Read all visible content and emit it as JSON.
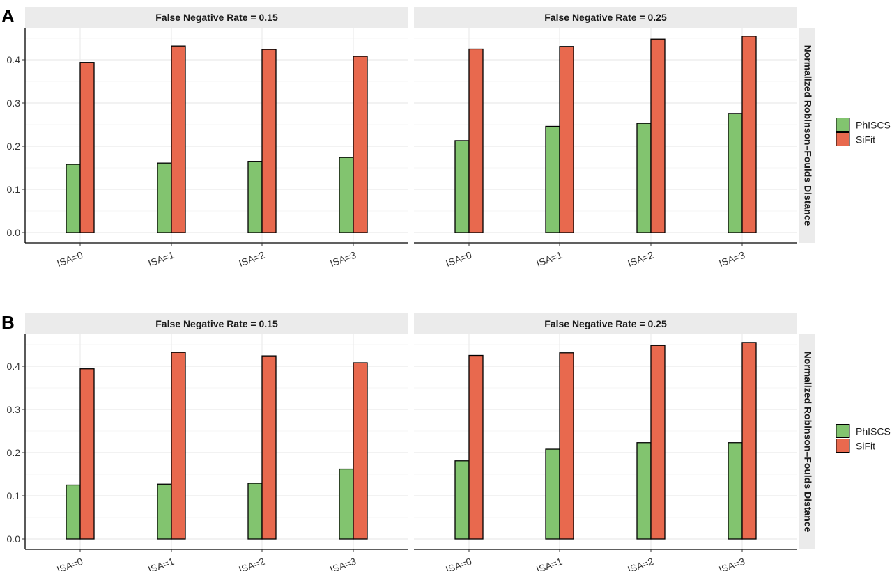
{
  "chart_data": [
    {
      "panel_label": "A",
      "type": "bar",
      "facets": [
        {
          "title": "False Negative Rate = 0.15",
          "categories": [
            "ISA=0",
            "ISA=1",
            "ISA=2",
            "ISA=3"
          ],
          "series": [
            {
              "name": "PhISCS",
              "values": [
                0.158,
                0.161,
                0.165,
                0.174
              ]
            },
            {
              "name": "SiFit",
              "values": [
                0.394,
                0.432,
                0.424,
                0.408
              ]
            }
          ]
        },
        {
          "title": "False Negative Rate = 0.25",
          "categories": [
            "ISA=0",
            "ISA=1",
            "ISA=2",
            "ISA=3"
          ],
          "series": [
            {
              "name": "PhISCS",
              "values": [
                0.213,
                0.246,
                0.253,
                0.276
              ]
            },
            {
              "name": "SiFit",
              "values": [
                0.425,
                0.431,
                0.448,
                0.455
              ]
            }
          ]
        }
      ],
      "ylabel": "Normalized Robinson–Foulds Distance",
      "yticks": [
        "0.0",
        "0.1",
        "0.2",
        "0.3",
        "0.4"
      ],
      "ylim": [
        0,
        0.48
      ],
      "grid": true,
      "legend": "right"
    },
    {
      "panel_label": "B",
      "type": "bar",
      "facets": [
        {
          "title": "False Negative Rate = 0.15",
          "categories": [
            "ISA=0",
            "ISA=1",
            "ISA=2",
            "ISA=3"
          ],
          "series": [
            {
              "name": "PhISCS",
              "values": [
                0.125,
                0.127,
                0.129,
                0.162
              ]
            },
            {
              "name": "SiFit",
              "values": [
                0.394,
                0.432,
                0.424,
                0.408
              ]
            }
          ]
        },
        {
          "title": "False Negative Rate = 0.25",
          "categories": [
            "ISA=0",
            "ISA=1",
            "ISA=2",
            "ISA=3"
          ],
          "series": [
            {
              "name": "PhISCS",
              "values": [
                0.181,
                0.208,
                0.223,
                0.223
              ]
            },
            {
              "name": "SiFit",
              "values": [
                0.425,
                0.431,
                0.448,
                0.455
              ]
            }
          ]
        }
      ],
      "ylabel": "Normalized Robinson–Foulds Distance",
      "yticks": [
        "0.0",
        "0.1",
        "0.2",
        "0.3",
        "0.4"
      ],
      "ylim": [
        0,
        0.48
      ],
      "grid": true,
      "legend": "right"
    }
  ],
  "legend": {
    "entries": [
      {
        "name": "PhISCS",
        "color": "#82c46f"
      },
      {
        "name": "SiFit",
        "color": "#e8694e"
      }
    ]
  },
  "colors": {
    "strip_bg": "#ebebeb",
    "grid": "#ebebeb",
    "axis": "#000000",
    "bar_outline": "#000000"
  }
}
